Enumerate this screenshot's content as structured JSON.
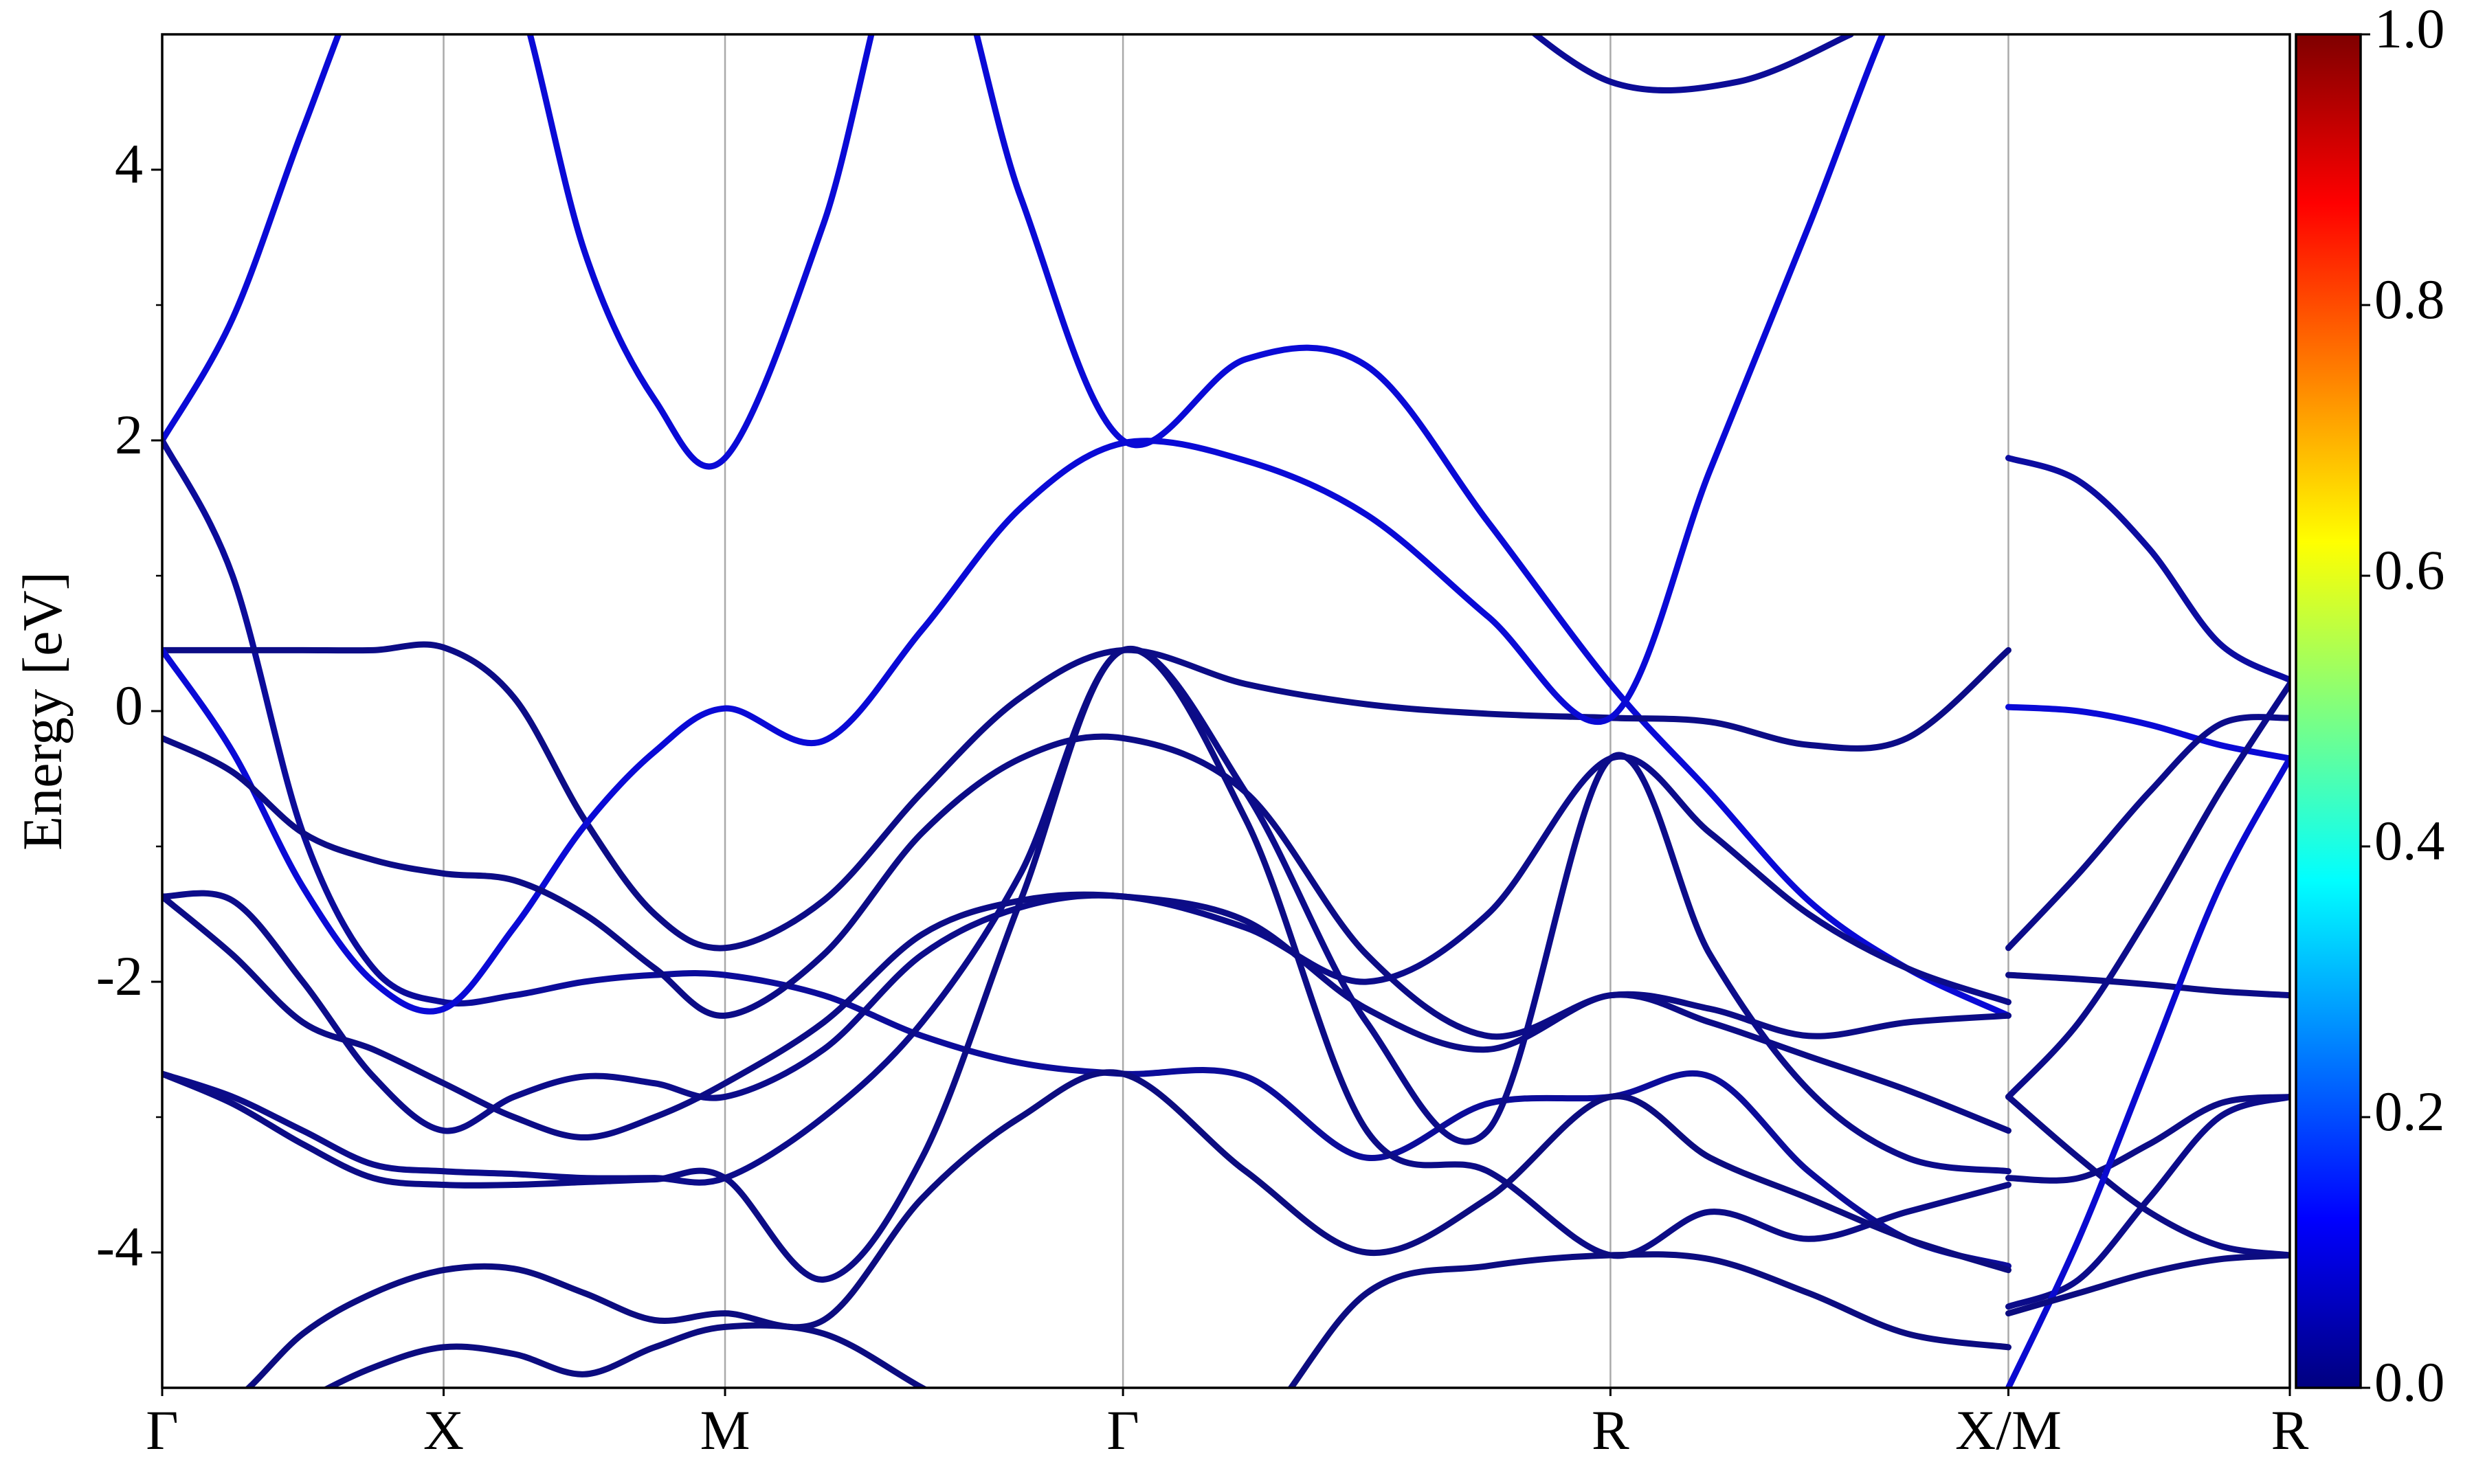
{
  "chart_data": {
    "type": "line",
    "ylabel": "Energy [eV]",
    "xlim": [
      0,
      7.56
    ],
    "xticks": [
      {
        "value": 0,
        "label": "Γ"
      },
      {
        "value": 1,
        "label": "X"
      },
      {
        "value": 2,
        "label": "M"
      },
      {
        "value": 3.414,
        "label": "Γ"
      },
      {
        "value": 5.146,
        "label": "R"
      },
      {
        "value": 6.56,
        "label": "X/M"
      },
      {
        "value": 7.56,
        "label": "R"
      }
    ],
    "ylim": [
      -5,
      5
    ],
    "yticks": [
      -4,
      -2,
      0,
      2,
      4
    ],
    "yminorticks": [
      -3,
      -1,
      1,
      3
    ],
    "grid": true,
    "x": [
      0,
      0.25,
      0.5,
      0.75,
      1,
      1.25,
      1.5,
      1.75,
      2,
      2.35,
      2.7,
      3.05,
      3.414,
      3.85,
      4.28,
      4.71,
      5.146,
      5.5,
      5.85,
      6.2,
      6.56
    ],
    "series": [
      {
        "color": "#0a0ad6",
        "values": [
          2.0,
          2.9,
          4.3,
          5.6,
          6.3,
          5.4,
          3.4,
          2.3,
          1.87,
          3.6,
          6.0,
          3.8,
          2.0,
          2.6,
          2.55,
          1.4,
          0.2,
          -0.6,
          -1.4,
          -1.9,
          -2.25
        ]
      },
      {
        "color": "#0c0c9a",
        "values": [
          2.0,
          1.0,
          -0.9,
          -1.9,
          -2.15,
          -2.1,
          -2.0,
          -1.95,
          -1.95,
          -2.1,
          -2.4,
          -2.6,
          -2.68,
          -2.7,
          -3.3,
          -2.9,
          -2.85,
          -2.7,
          -3.4,
          -3.9,
          -4.1
        ]
      },
      {
        "color": "#0c0c86",
        "values": [
          0.45,
          0.45,
          0.45,
          0.45,
          0.47,
          0.1,
          -0.8,
          -1.5,
          -1.75,
          -1.4,
          -0.6,
          0.1,
          0.45,
          0.2,
          0.05,
          -0.02,
          -0.05,
          -0.08,
          -0.25,
          -0.2,
          0.45
        ]
      },
      {
        "color": "#0a0ad6",
        "values": [
          0.45,
          -0.3,
          -1.3,
          -2.0,
          -2.2,
          -1.6,
          -0.85,
          -0.3,
          0.02,
          -0.22,
          0.6,
          1.5,
          1.98,
          1.85,
          1.45,
          0.7,
          -0.05,
          1.78,
          3.58,
          5.4,
          6.5
        ]
      },
      {
        "color": "#0c0c86",
        "values": [
          -0.2,
          -0.45,
          -0.9,
          -1.1,
          -1.2,
          -1.25,
          -1.5,
          -1.9,
          -2.25,
          -1.8,
          -0.9,
          -0.35,
          -0.2,
          -0.6,
          -1.8,
          -2.4,
          -2.1,
          -2.2,
          -2.4,
          -2.3,
          -2.25
        ]
      },
      {
        "color": "#0c0c8a",
        "values": [
          -1.37,
          -1.4,
          -2.0,
          -2.7,
          -3.1,
          -2.85,
          -2.7,
          -2.75,
          -2.85,
          -2.5,
          -1.8,
          -1.45,
          -1.37,
          -1.6,
          -2.0,
          -1.5,
          -0.35,
          -0.9,
          -1.5,
          -1.9,
          -2.15
        ]
      },
      {
        "color": "#0c0c86",
        "values": [
          -1.37,
          -1.8,
          -2.3,
          -2.5,
          -2.75,
          -3.0,
          -3.15,
          -3.0,
          -2.75,
          -2.3,
          -1.65,
          -1.4,
          -1.37,
          -1.55,
          -2.2,
          -2.5,
          -2.1,
          -2.3,
          -2.55,
          -2.8,
          -3.1
        ]
      },
      {
        "color": "#0c0c8a",
        "values": [
          -2.68,
          -2.85,
          -3.1,
          -3.35,
          -3.4,
          -3.42,
          -3.45,
          -3.45,
          -3.45,
          -3.0,
          -2.3,
          -1.2,
          0.45,
          -0.6,
          -2.3,
          -3.1,
          -0.35,
          -1.8,
          -2.8,
          -3.3,
          -3.4
        ]
      },
      {
        "color": "#0c0c86",
        "values": [
          -2.68,
          -2.9,
          -3.2,
          -3.45,
          -3.5,
          -3.5,
          -3.48,
          -3.46,
          -3.45,
          -4.2,
          -3.3,
          -1.4,
          0.45,
          -0.8,
          -3.1,
          -3.4,
          -4.02,
          -3.7,
          -3.9,
          -3.7,
          -3.5
        ]
      },
      {
        "color": "#0c0c80",
        "values": [
          -5.3,
          -5.1,
          -4.6,
          -4.3,
          -4.13,
          -4.12,
          -4.3,
          -4.5,
          -4.45,
          -4.5,
          -3.6,
          -3.0,
          -2.68,
          -3.4,
          -4.0,
          -3.6,
          -2.85,
          -3.3,
          -3.6,
          -3.9,
          -4.13
        ]
      },
      {
        "color": "#0c0c80",
        "values": [
          -5.6,
          -5.4,
          -5.1,
          -4.85,
          -4.7,
          -4.75,
          -4.9,
          -4.7,
          -4.55,
          -4.6,
          -5.0,
          -5.4,
          -5.8,
          -5.4,
          -4.3,
          -4.1,
          -4.02,
          -4.05,
          -4.3,
          -4.6,
          -4.7
        ]
      },
      {
        "color": "#0c0c96",
        "x": [
          4.7,
          5.146,
          5.6,
          6.0
        ],
        "values": [
          5.3,
          4.65,
          4.65,
          5.0
        ]
      },
      {
        "color": "#0c0ca0",
        "x": [
          6.56,
          6.81,
          7.06,
          7.31,
          7.56
        ],
        "values": [
          1.87,
          1.7,
          1.2,
          0.5,
          0.23
        ]
      },
      {
        "color": "#0a0ad6",
        "x": [
          6.56,
          6.81,
          7.06,
          7.31,
          7.56
        ],
        "values": [
          0.03,
          0.0,
          -0.1,
          -0.25,
          -0.35
        ]
      },
      {
        "color": "#0c0c8a",
        "x": [
          6.56,
          6.81,
          7.06,
          7.31,
          7.56
        ],
        "values": [
          -1.75,
          -1.2,
          -0.6,
          -0.1,
          -0.05
        ]
      },
      {
        "color": "#0c0c86",
        "x": [
          6.56,
          6.81,
          7.06,
          7.31,
          7.56
        ],
        "values": [
          -1.95,
          -1.98,
          -2.02,
          -2.07,
          -2.1
        ]
      },
      {
        "color": "#0c0c8a",
        "x": [
          6.56,
          6.81,
          7.06,
          7.31,
          7.56
        ],
        "values": [
          -2.85,
          -2.3,
          -1.5,
          -0.6,
          0.2
        ]
      },
      {
        "color": "#0c0c86",
        "x": [
          6.56,
          6.81,
          7.06,
          7.31,
          7.56
        ],
        "values": [
          -3.45,
          -3.45,
          -3.2,
          -2.9,
          -2.85
        ]
      },
      {
        "color": "#0c0c8a",
        "x": [
          6.56,
          6.81,
          7.06,
          7.31,
          7.56
        ],
        "values": [
          -4.4,
          -4.2,
          -3.6,
          -3.0,
          -2.85
        ]
      },
      {
        "color": "#0c0c86",
        "x": [
          6.56,
          6.81,
          7.06,
          7.31,
          7.56
        ],
        "values": [
          -2.85,
          -3.3,
          -3.7,
          -3.95,
          -4.02
        ]
      },
      {
        "color": "#0a0ad0",
        "x": [
          6.56,
          6.81,
          7.06,
          7.31,
          7.56
        ],
        "values": [
          -5.0,
          -3.9,
          -2.6,
          -1.3,
          -0.35
        ]
      },
      {
        "color": "#0c0c80",
        "x": [
          6.56,
          6.81,
          7.06,
          7.31,
          7.56
        ],
        "values": [
          -4.45,
          -4.3,
          -4.15,
          -4.05,
          -4.02
        ]
      }
    ],
    "colorbar": {
      "colormap": "jet",
      "lim": [
        0,
        1
      ],
      "ticks": [
        {
          "value": 0,
          "label": "0.0"
        },
        0.2,
        0.4,
        0.6,
        0.8,
        {
          "value": 1,
          "label": "1.0"
        }
      ]
    }
  }
}
